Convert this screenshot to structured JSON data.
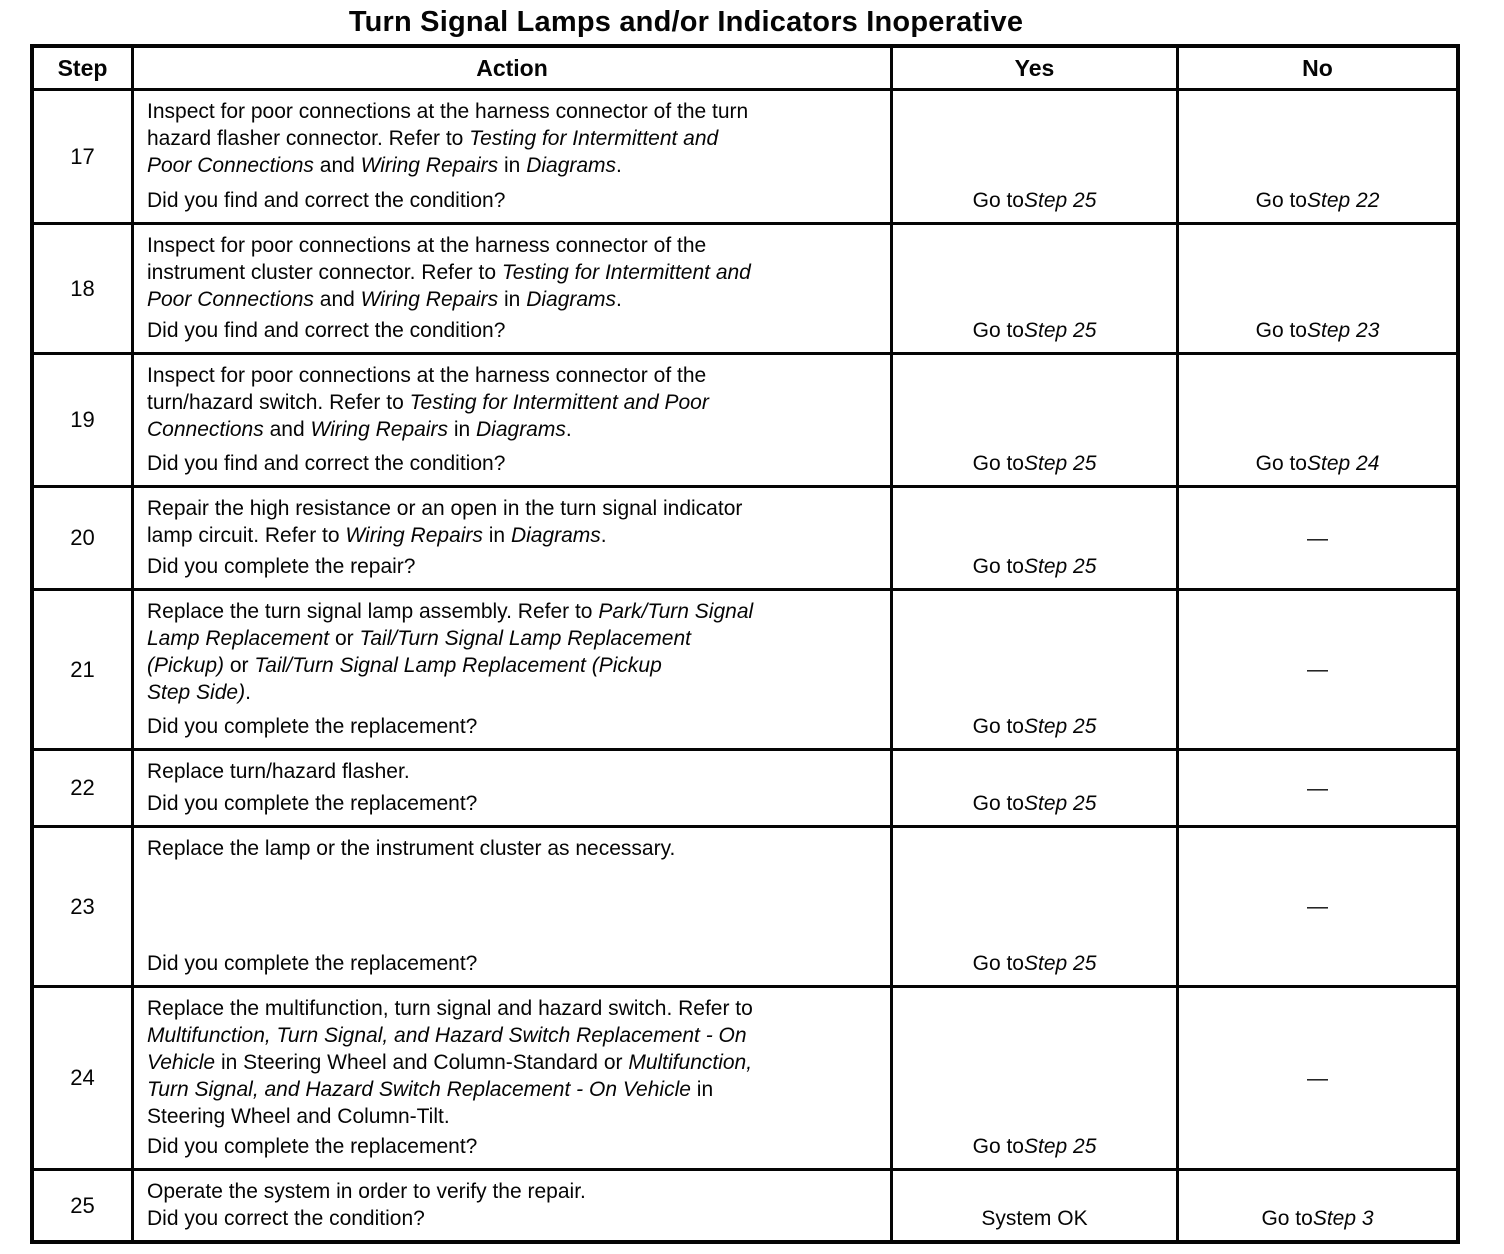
{
  "title": "Turn Signal Lamps and/or Indicators Inoperative",
  "table": {
    "headers": {
      "step": "Step",
      "action": "Action",
      "yes": "Yes",
      "no": "No"
    },
    "rows": [
      {
        "step": "17",
        "action": [
          {
            "t": "Inspect for poor connections at the harness connector of the turn\nhazard flasher connector. Refer to "
          },
          {
            "t": "Testing for Intermittent and\nPoor Connections",
            "i": true
          },
          {
            "t": " and "
          },
          {
            "t": "Wiring Repairs",
            "i": true
          },
          {
            "t": " in "
          },
          {
            "t": "Diagrams",
            "i": true
          },
          {
            "t": "."
          }
        ],
        "question": "Did you find and correct the condition?",
        "yes": [
          {
            "t": "Go to "
          },
          {
            "t": "Step 25",
            "i": true
          }
        ],
        "no": [
          {
            "t": "Go to "
          },
          {
            "t": "Step 22",
            "i": true
          }
        ]
      },
      {
        "step": "18",
        "action": [
          {
            "t": "Inspect for poor connections at the harness connector of the\ninstrument cluster connector. Refer to "
          },
          {
            "t": "Testing for Intermittent and\nPoor Connections",
            "i": true
          },
          {
            "t": " and "
          },
          {
            "t": "Wiring Repairs",
            "i": true
          },
          {
            "t": " in "
          },
          {
            "t": "Diagrams",
            "i": true
          },
          {
            "t": "."
          }
        ],
        "question": "Did you find and correct the condition?",
        "yes": [
          {
            "t": "Go to "
          },
          {
            "t": "Step 25",
            "i": true
          }
        ],
        "no": [
          {
            "t": "Go to "
          },
          {
            "t": "Step 23",
            "i": true
          }
        ]
      },
      {
        "step": "19",
        "action": [
          {
            "t": "Inspect for poor connections at the harness connector of the\nturn/hazard switch. Refer to "
          },
          {
            "t": "Testing for Intermittent and Poor\nConnections",
            "i": true
          },
          {
            "t": " and "
          },
          {
            "t": "Wiring Repairs",
            "i": true
          },
          {
            "t": " in "
          },
          {
            "t": "Diagrams",
            "i": true
          },
          {
            "t": "."
          }
        ],
        "question": "Did you find and correct the condition?",
        "yes": [
          {
            "t": "Go to "
          },
          {
            "t": "Step 25",
            "i": true
          }
        ],
        "no": [
          {
            "t": "Go to "
          },
          {
            "t": "Step 24",
            "i": true
          }
        ]
      },
      {
        "step": "20",
        "action": [
          {
            "t": "Repair the high resistance or an open in the turn signal indicator\nlamp circuit. Refer to "
          },
          {
            "t": "Wiring Repairs",
            "i": true
          },
          {
            "t": " in "
          },
          {
            "t": "Diagrams",
            "i": true
          },
          {
            "t": "."
          }
        ],
        "question": "Did you complete the repair?",
        "yes": [
          {
            "t": "Go to "
          },
          {
            "t": "Step 25",
            "i": true
          }
        ],
        "no": [
          {
            "t": "—"
          }
        ]
      },
      {
        "step": "21",
        "action": [
          {
            "t": "Replace the turn signal lamp assembly. Refer to "
          },
          {
            "t": "Park/Turn Signal\nLamp Replacement",
            "i": true
          },
          {
            "t": " or "
          },
          {
            "t": "Tail/Turn Signal Lamp Replacement\n(Pickup)",
            "i": true
          },
          {
            "t": " or "
          },
          {
            "t": "Tail/Turn Signal Lamp Replacement (Pickup\nStep Side)",
            "i": true
          },
          {
            "t": "."
          }
        ],
        "question": "Did you complete the replacement?",
        "yes": [
          {
            "t": "Go to "
          },
          {
            "t": "Step 25",
            "i": true
          }
        ],
        "no": [
          {
            "t": "—"
          }
        ]
      },
      {
        "step": "22",
        "action": [
          {
            "t": "Replace turn/hazard flasher."
          }
        ],
        "question": "Did you complete the replacement?",
        "yes": [
          {
            "t": "Go to "
          },
          {
            "t": "Step 25",
            "i": true
          }
        ],
        "no": [
          {
            "t": "—"
          }
        ]
      },
      {
        "step": "23",
        "action": [
          {
            "t": "Replace the lamp or the instrument cluster as necessary."
          }
        ],
        "question": "Did you complete the replacement?",
        "yes": [
          {
            "t": "Go to "
          },
          {
            "t": "Step 25",
            "i": true
          }
        ],
        "no": [
          {
            "t": "—"
          }
        ]
      },
      {
        "step": "24",
        "action": [
          {
            "t": "Replace the multifunction, turn signal and hazard switch. Refer to\n"
          },
          {
            "t": "Multifunction, Turn Signal, and Hazard Switch Replacement - On\nVehicle",
            "i": true
          },
          {
            "t": " in Steering Wheel and Column-Standard or "
          },
          {
            "t": "Multifunction,\nTurn Signal, and Hazard Switch Replacement - On Vehicle",
            "i": true
          },
          {
            "t": " in\nSteering Wheel and Column-Tilt."
          }
        ],
        "question": "Did you complete the replacement?",
        "yes": [
          {
            "t": "Go to "
          },
          {
            "t": "Step 25",
            "i": true
          }
        ],
        "no": [
          {
            "t": "—"
          }
        ]
      },
      {
        "step": "25",
        "action": [
          {
            "t": "Operate the system in order to verify the repair."
          }
        ],
        "question": "Did you correct the condition?",
        "yes": [
          {
            "t": "System OK"
          }
        ],
        "no": [
          {
            "t": "Go to "
          },
          {
            "t": "Step 3",
            "i": true
          }
        ]
      }
    ]
  }
}
